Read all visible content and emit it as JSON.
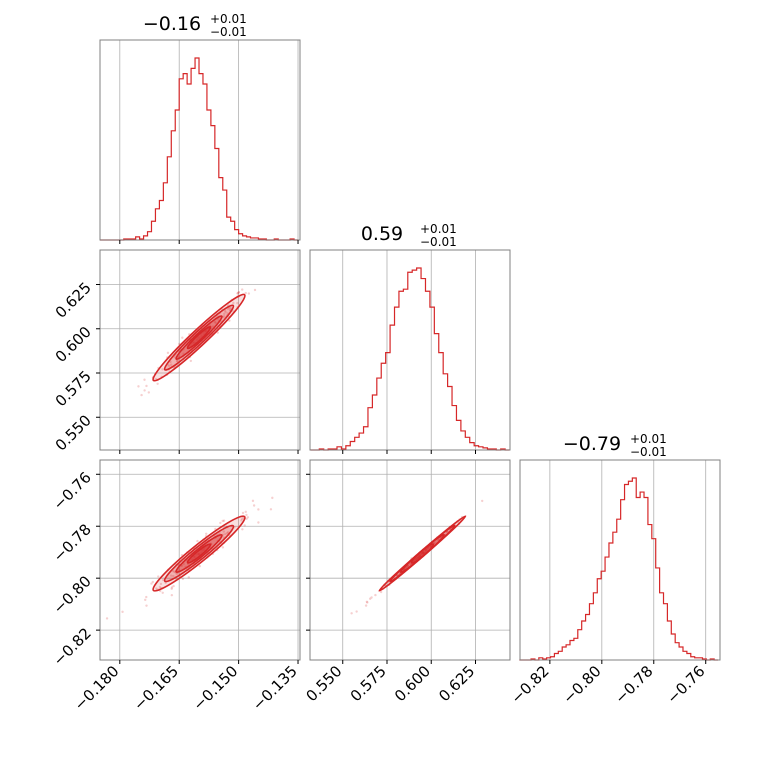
{
  "chart_data": {
    "type": "corner",
    "color": "#d62728",
    "grid": true,
    "params": [
      {
        "title_main": "−0.16",
        "title_sup": "+0.01",
        "title_sub": "−0.01",
        "range": [
          -0.185,
          -0.1345
        ],
        "ticks": [
          -0.18,
          -0.165,
          -0.15,
          -0.135
        ],
        "tick_labels": [
          "−0.180",
          "−0.165",
          "−0.150",
          "−0.135"
        ]
      },
      {
        "title_main": "0.59",
        "title_sup": "+0.01",
        "title_sub": "−0.01",
        "range": [
          0.5315,
          0.6445
        ],
        "ticks": [
          0.55,
          0.575,
          0.6,
          0.625
        ],
        "tick_labels": [
          "0.550",
          "0.575",
          "0.600",
          "0.625"
        ]
      },
      {
        "title_main": "−0.79",
        "title_sup": "+0.01",
        "title_sub": "−0.01",
        "range": [
          -0.8315,
          -0.7545
        ],
        "ticks": [
          -0.82,
          -0.8,
          -0.78,
          -0.76
        ],
        "tick_labels": [
          "−0.82",
          "−0.80",
          "−0.78",
          "−0.76"
        ]
      }
    ],
    "histograms": [
      {
        "param_index": 0,
        "bin_centers": [
          -0.1845,
          -0.1835,
          -0.1825,
          -0.1815,
          -0.1805,
          -0.1795,
          -0.1785,
          -0.1775,
          -0.1765,
          -0.1755,
          -0.1745,
          -0.1735,
          -0.1725,
          -0.1715,
          -0.1705,
          -0.1695,
          -0.1685,
          -0.1675,
          -0.1665,
          -0.1655,
          -0.1645,
          -0.1635,
          -0.1625,
          -0.1615,
          -0.1605,
          -0.1595,
          -0.1585,
          -0.1575,
          -0.1565,
          -0.1555,
          -0.1545,
          -0.1535,
          -0.1525,
          -0.1515,
          -0.1505,
          -0.1495,
          -0.1485,
          -0.1475,
          -0.1465,
          -0.1455,
          -0.1445,
          -0.1435,
          -0.1425,
          -0.1415,
          -0.1405,
          -0.1395,
          -0.1385,
          -0.1375,
          -0.1365,
          -0.1355
        ],
        "counts": [
          0,
          0,
          0,
          0,
          0,
          0,
          1,
          1,
          1,
          3,
          1,
          4,
          8,
          18,
          30,
          38,
          55,
          80,
          105,
          125,
          155,
          160,
          150,
          165,
          175,
          160,
          150,
          125,
          110,
          88,
          60,
          48,
          22,
          18,
          10,
          6,
          4,
          3,
          2,
          2,
          1,
          1,
          0,
          0,
          1,
          0,
          0,
          0,
          1,
          0
        ]
      },
      {
        "param_index": 1,
        "bin_centers": [
          0.533,
          0.5355,
          0.538,
          0.5405,
          0.543,
          0.5455,
          0.548,
          0.5505,
          0.553,
          0.5555,
          0.558,
          0.5605,
          0.563,
          0.5655,
          0.568,
          0.5705,
          0.573,
          0.5755,
          0.578,
          0.5805,
          0.583,
          0.5855,
          0.588,
          0.5905,
          0.593,
          0.5955,
          0.598,
          0.6005,
          0.603,
          0.6055,
          0.608,
          0.6105,
          0.613,
          0.6155,
          0.618,
          0.6205,
          0.623,
          0.6255,
          0.628,
          0.6305,
          0.633,
          0.6355,
          0.638,
          0.6405,
          0.643
        ],
        "counts": [
          0,
          0,
          1,
          0,
          1,
          1,
          3,
          1,
          4,
          8,
          12,
          16,
          22,
          40,
          52,
          68,
          82,
          92,
          118,
          135,
          150,
          152,
          168,
          170,
          172,
          162,
          150,
          135,
          110,
          92,
          72,
          60,
          42,
          28,
          18,
          12,
          7,
          4,
          3,
          2,
          1,
          1,
          0,
          1,
          0
        ]
      },
      {
        "param_index": 2,
        "bin_centers": [
          -0.831,
          -0.8295,
          -0.828,
          -0.8265,
          -0.825,
          -0.8235,
          -0.822,
          -0.8205,
          -0.819,
          -0.8175,
          -0.816,
          -0.8145,
          -0.813,
          -0.8115,
          -0.81,
          -0.8085,
          -0.807,
          -0.8055,
          -0.804,
          -0.8025,
          -0.801,
          -0.7995,
          -0.798,
          -0.7965,
          -0.795,
          -0.7935,
          -0.792,
          -0.7905,
          -0.789,
          -0.7875,
          -0.786,
          -0.7845,
          -0.783,
          -0.7815,
          -0.78,
          -0.7785,
          -0.777,
          -0.7755,
          -0.774,
          -0.7725,
          -0.771,
          -0.7695,
          -0.768,
          -0.7665,
          -0.765,
          -0.7635,
          -0.762,
          -0.7605,
          -0.759,
          -0.7575,
          -0.756
        ],
        "counts": [
          0,
          0,
          0,
          1,
          0,
          2,
          1,
          2,
          3,
          6,
          8,
          12,
          14,
          18,
          20,
          28,
          36,
          42,
          52,
          62,
          75,
          82,
          95,
          108,
          118,
          130,
          148,
          162,
          165,
          168,
          150,
          155,
          150,
          125,
          112,
          85,
          62,
          52,
          36,
          24,
          16,
          12,
          8,
          6,
          3,
          2,
          2,
          1,
          0,
          1,
          0
        ]
      }
    ],
    "panels_2d": [
      {
        "x_param": 0,
        "y_param": 1,
        "correlation": 0.97,
        "mean": [
          -0.16,
          0.595
        ],
        "std": [
          0.0058,
          0.0122
        ]
      },
      {
        "x_param": 0,
        "y_param": 2,
        "correlation": 0.96,
        "mean": [
          -0.16,
          -0.7905
        ],
        "std": [
          0.0058,
          0.0072
        ]
      },
      {
        "x_param": 1,
        "y_param": 2,
        "correlation": 0.998,
        "mean": [
          0.595,
          -0.7905
        ],
        "std": [
          0.0122,
          0.0072
        ]
      }
    ]
  }
}
